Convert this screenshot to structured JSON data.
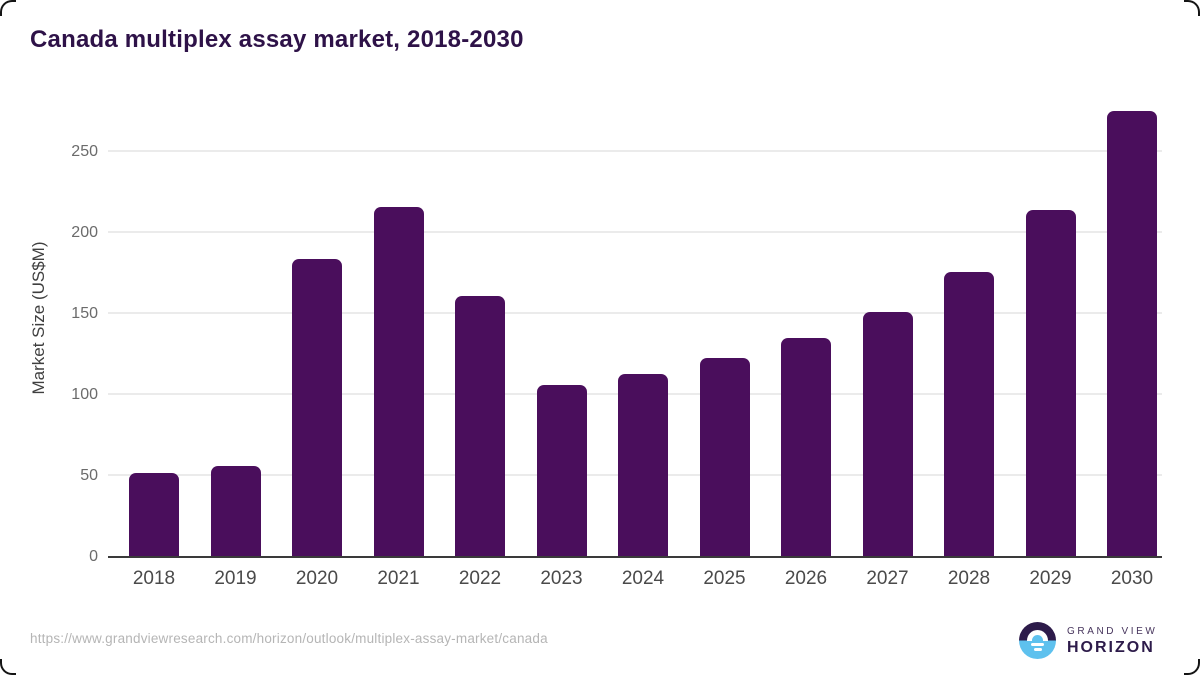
{
  "title": "Canada multiplex assay market, 2018-2030",
  "source_url": "https://www.grandviewresearch.com/horizon/outlook/multiplex-assay-market/canada",
  "branding": {
    "logo_top": "GRAND VIEW",
    "logo_bottom": "HORIZON",
    "logo_icon": "sunrise-over-horizon"
  },
  "colors": {
    "bar": "#4a0e5c",
    "title": "#2e1248",
    "gridline": "#ebebeb",
    "axis_line": "#3a3a3a",
    "y_tick_label": "#6b6b6b",
    "x_tick_label": "#4a4a4a",
    "url_text": "#b5b5b5",
    "logo_purple": "#2d1b4a",
    "logo_blue": "#5ec1ee"
  },
  "chart_data": {
    "type": "bar",
    "title": "Canada multiplex assay market, 2018-2030",
    "categories": [
      "2018",
      "2019",
      "2020",
      "2021",
      "2022",
      "2023",
      "2024",
      "2025",
      "2026",
      "2027",
      "2028",
      "2029",
      "2030"
    ],
    "values": [
      52,
      56,
      184,
      216,
      161,
      106,
      113,
      123,
      135,
      151,
      176,
      214,
      275
    ],
    "xlabel": "",
    "ylabel": "Market Size (US$M)",
    "ylim": [
      0,
      282
    ],
    "yticks": [
      0,
      50,
      100,
      150,
      200,
      250
    ],
    "grid": "horizontal",
    "legend": "none",
    "bar_color": "#4a0e5c"
  }
}
